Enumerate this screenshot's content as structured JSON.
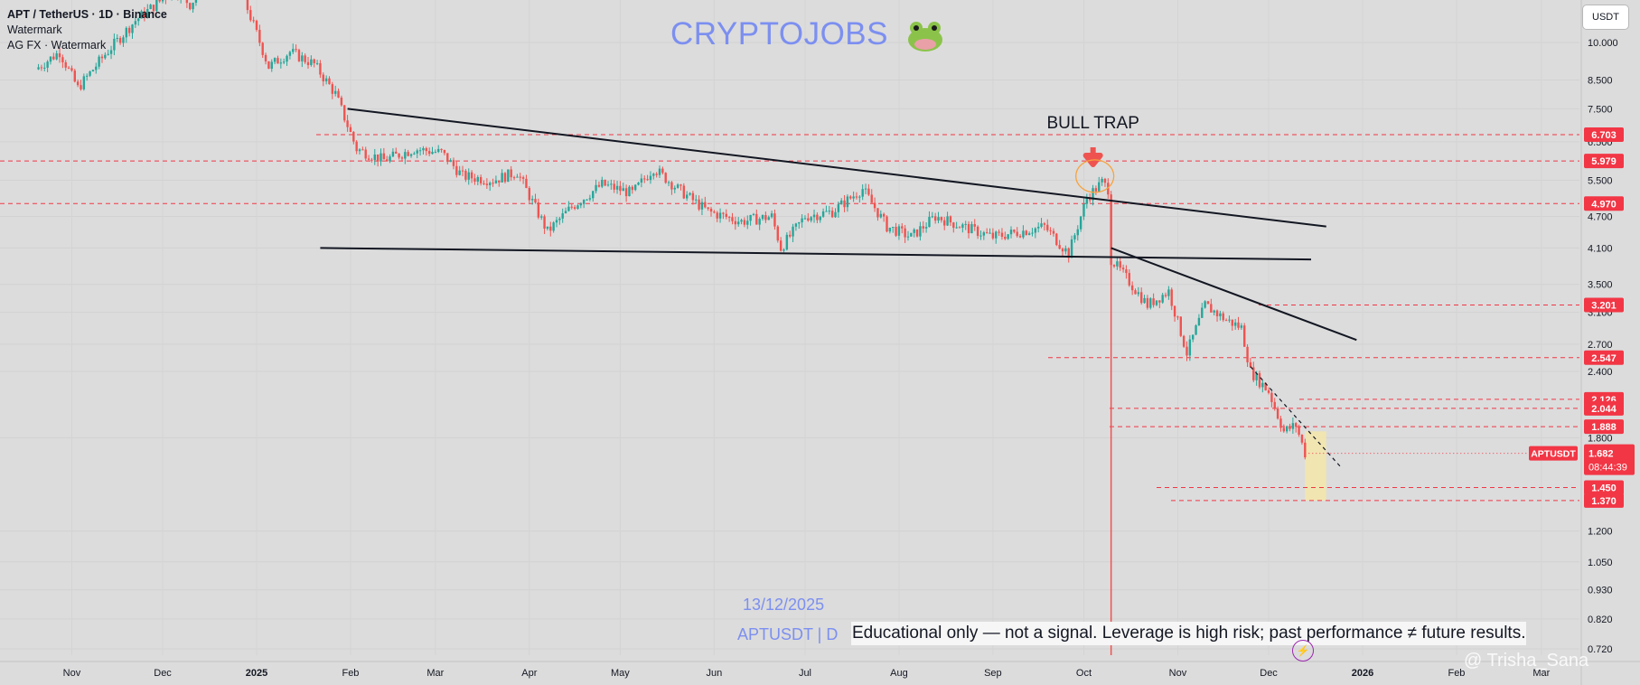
{
  "header": {
    "symbol_line": "APT / TetherUS · 1D · Binance",
    "line2": "Watermark",
    "line3": "AG FX · Watermark"
  },
  "brand": {
    "text": "CRYPTOJOBS",
    "icon": "frog-icon"
  },
  "currency_button": "USDT",
  "watermark": {
    "date": "13/12/2025",
    "symbol": "APTUSDT | D"
  },
  "disclaimer": "Educational only — not a signal. Leverage is high risk; past performance ≠ future results.",
  "credit": "@ Trisha_Sana",
  "annotation": {
    "text": "BULL TRAP"
  },
  "colors": {
    "background": "#dcdcdc",
    "up_candle": "#26a69a",
    "down_candle": "#ef5350",
    "level_line": "#f23645",
    "trendline": "#131722",
    "brand": "#7c8ff0",
    "target_zone": "#f6e7a7"
  },
  "chart_data": {
    "type": "candlestick",
    "title": "APT / TetherUS · 1D · Binance",
    "y_scale": "log",
    "ylim": [
      0.7,
      12.0
    ],
    "y_ticks": [
      "10.000",
      "8.500",
      "7.500",
      "6.500",
      "5.500",
      "4.700",
      "4.100",
      "3.500",
      "3.100",
      "2.700",
      "2.400",
      "1.800",
      "1.200",
      "1.050",
      "0.930",
      "0.820",
      "0.720"
    ],
    "x_ticks": [
      "Nov",
      "Dec",
      "2025",
      "Feb",
      "Mar",
      "Apr",
      "May",
      "Jun",
      "Jul",
      "Aug",
      "Sep",
      "Oct",
      "Nov",
      "Dec",
      "2026",
      "Feb",
      "Mar"
    ],
    "x_range": [
      "2024-10-20",
      "2026-03-15"
    ],
    "price_levels": [
      {
        "label": "6.703",
        "value": 6.703
      },
      {
        "label": "5.979",
        "value": 5.979
      },
      {
        "label": "4.970",
        "value": 4.97
      },
      {
        "label": "3.201",
        "value": 3.201
      },
      {
        "label": "2.547",
        "value": 2.547
      },
      {
        "label": "2.126",
        "value": 2.126
      },
      {
        "label": "2.044",
        "value": 2.044
      },
      {
        "label": "1.888",
        "value": 1.888
      },
      {
        "label": "1.450",
        "value": 1.45
      },
      {
        "label": "1.370",
        "value": 1.37
      }
    ],
    "current_price": {
      "symbol": "APTUSDT",
      "label": "1.682",
      "value": 1.682,
      "countdown": "08:44:39"
    },
    "trendlines": [
      {
        "name": "descending-resistance",
        "from": [
          "2025-01-31",
          7.5
        ],
        "to": [
          "2025-12-20",
          4.5
        ]
      },
      {
        "name": "horizontal-support",
        "from": [
          "2025-01-22",
          4.1
        ],
        "to": [
          "2025-12-15",
          3.9
        ]
      },
      {
        "name": "downtrend-line",
        "from": [
          "2025-10-10",
          4.1
        ],
        "to": [
          "2025-12-30",
          2.75
        ]
      }
    ],
    "event_marker": {
      "label": "BULL TRAP",
      "date": "2025-10-10",
      "price": 5.6
    },
    "target_zone": {
      "from": "2025-12-13",
      "to": "2025-12-20",
      "low": 1.37,
      "high": 1.85
    },
    "price_path": [
      [
        "2024-10-20",
        8.9
      ],
      [
        "2024-10-28",
        9.6
      ],
      [
        "2024-11-03",
        8.2
      ],
      [
        "2024-11-12",
        9.5
      ],
      [
        "2024-11-22",
        11.0
      ],
      [
        "2024-12-05",
        12.6
      ],
      [
        "2024-12-10",
        11.8
      ],
      [
        "2024-12-18",
        13.5
      ],
      [
        "2024-12-28",
        12.0
      ],
      [
        "2025-01-05",
        9.0
      ],
      [
        "2025-01-12",
        9.6
      ],
      [
        "2025-01-20",
        9.1
      ],
      [
        "2025-01-27",
        8.0
      ],
      [
        "2025-02-03",
        6.3
      ],
      [
        "2025-02-12",
        6.0
      ],
      [
        "2025-02-22",
        6.3
      ],
      [
        "2025-03-03",
        6.2
      ],
      [
        "2025-03-10",
        5.6
      ],
      [
        "2025-03-20",
        5.5
      ],
      [
        "2025-03-28",
        5.7
      ],
      [
        "2025-04-07",
        4.4
      ],
      [
        "2025-04-15",
        4.9
      ],
      [
        "2025-04-25",
        5.4
      ],
      [
        "2025-05-05",
        5.2
      ],
      [
        "2025-05-12",
        5.8
      ],
      [
        "2025-05-20",
        5.3
      ],
      [
        "2025-05-30",
        4.8
      ],
      [
        "2025-06-10",
        4.6
      ],
      [
        "2025-06-20",
        4.7
      ],
      [
        "2025-06-23",
        4.1
      ],
      [
        "2025-07-01",
        4.7
      ],
      [
        "2025-07-10",
        4.8
      ],
      [
        "2025-07-20",
        5.3
      ],
      [
        "2025-07-28",
        4.5
      ],
      [
        "2025-08-05",
        4.3
      ],
      [
        "2025-08-13",
        4.7
      ],
      [
        "2025-08-22",
        4.5
      ],
      [
        "2025-09-01",
        4.3
      ],
      [
        "2025-09-10",
        4.4
      ],
      [
        "2025-09-18",
        4.5
      ],
      [
        "2025-09-26",
        4.0
      ],
      [
        "2025-10-02",
        5.1
      ],
      [
        "2025-10-07",
        5.45
      ],
      [
        "2025-10-09",
        5.3
      ],
      [
        "2025-10-10",
        3.9
      ],
      [
        "2025-10-15",
        3.6
      ],
      [
        "2025-10-22",
        3.2
      ],
      [
        "2025-10-29",
        3.4
      ],
      [
        "2025-11-04",
        2.6
      ],
      [
        "2025-11-10",
        3.2
      ],
      [
        "2025-11-17",
        3.0
      ],
      [
        "2025-11-22",
        2.9
      ],
      [
        "2025-11-25",
        2.4
      ],
      [
        "2025-12-01",
        2.2
      ],
      [
        "2025-12-06",
        1.85
      ],
      [
        "2025-12-10",
        1.9
      ],
      [
        "2025-12-13",
        1.682
      ]
    ]
  }
}
